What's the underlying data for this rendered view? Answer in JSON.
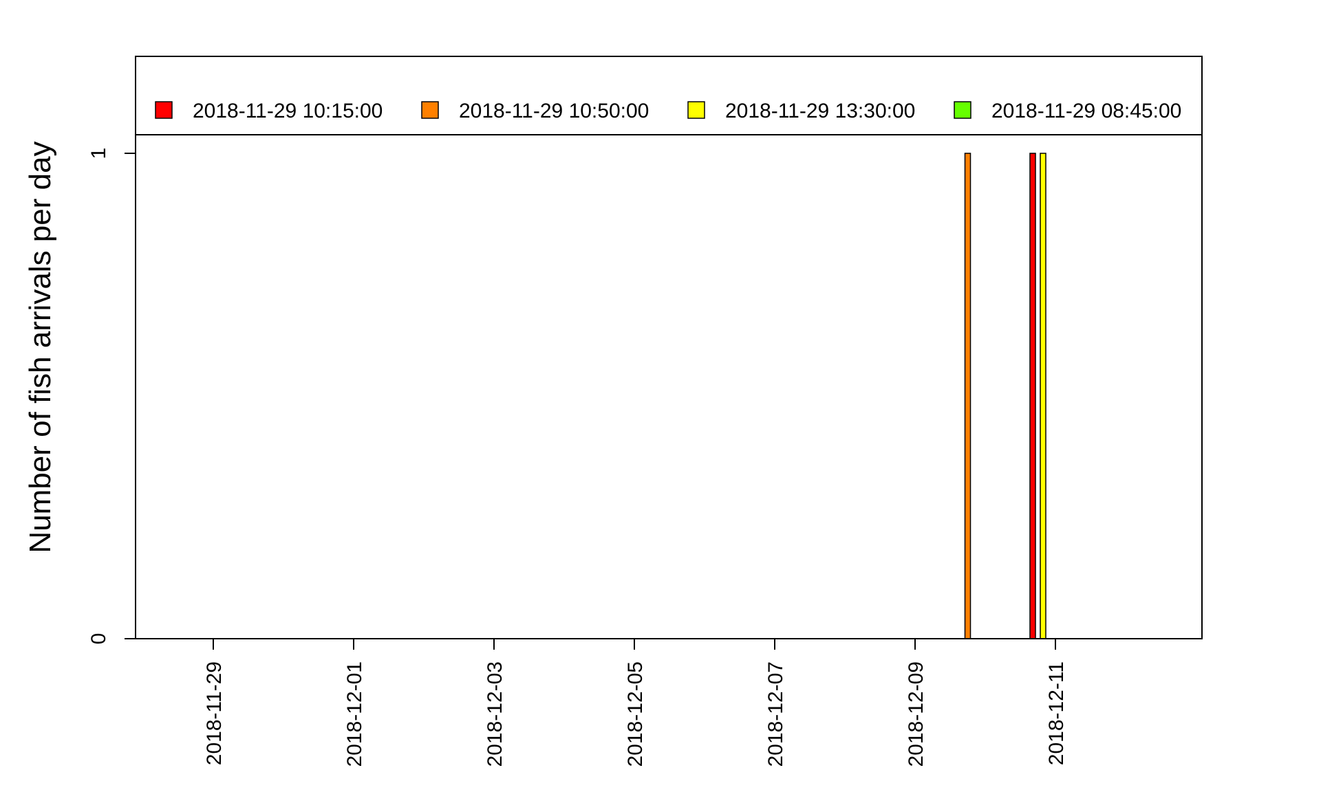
{
  "chart_data": {
    "type": "bar",
    "ylabel": "Number of fish arrivals per day",
    "xlabel": "",
    "ylim": [
      0,
      1
    ],
    "yticks": [
      0,
      1
    ],
    "xlim": [
      "2018-11-28",
      "2018-12-13"
    ],
    "xticks": [
      "2018-11-29",
      "2018-12-01",
      "2018-12-03",
      "2018-12-05",
      "2018-12-07",
      "2018-12-09",
      "2018-12-11"
    ],
    "legend_position": "top",
    "series": [
      {
        "name": "2018-11-29 10:15:00",
        "color": "#ff0000",
        "points": [
          {
            "date": "2018-12-10",
            "value": 1
          }
        ]
      },
      {
        "name": "2018-11-29 10:50:00",
        "color": "#ff8000",
        "points": [
          {
            "date": "2018-12-09",
            "value": 1
          }
        ]
      },
      {
        "name": "2018-11-29 13:30:00",
        "color": "#ffff00",
        "points": [
          {
            "date": "2018-12-10",
            "value": 1
          }
        ]
      },
      {
        "name": "2018-11-29 08:45:00",
        "color": "#66ff00",
        "points": []
      }
    ]
  }
}
